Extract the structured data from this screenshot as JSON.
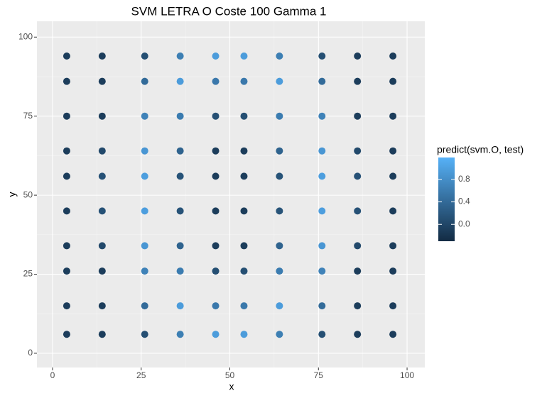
{
  "chart_data": {
    "type": "scatter",
    "title": "SVM LETRA O Coste 100 Gamma 1",
    "x_label": "x",
    "y_label": "y",
    "x": [
      4,
      4,
      4,
      4,
      4,
      4,
      4,
      4,
      4,
      4,
      14,
      14,
      14,
      14,
      14,
      14,
      14,
      14,
      14,
      14,
      26,
      26,
      26,
      26,
      26,
      26,
      26,
      26,
      26,
      26,
      36,
      36,
      36,
      36,
      36,
      36,
      36,
      36,
      36,
      36,
      46,
      46,
      46,
      46,
      46,
      46,
      46,
      46,
      46,
      46,
      54,
      54,
      54,
      54,
      54,
      54,
      54,
      54,
      54,
      54,
      64,
      64,
      64,
      64,
      64,
      64,
      64,
      64,
      64,
      64,
      76,
      76,
      76,
      76,
      76,
      76,
      76,
      76,
      76,
      76,
      86,
      86,
      86,
      86,
      86,
      86,
      86,
      86,
      86,
      86,
      96,
      96,
      96,
      96,
      96,
      96,
      96,
      96,
      96,
      96
    ],
    "values": [
      6,
      15,
      26,
      34,
      45,
      56,
      64,
      75,
      86,
      94,
      6,
      15,
      26,
      34,
      45,
      56,
      64,
      75,
      86,
      94,
      6,
      15,
      26,
      34,
      45,
      56,
      64,
      75,
      86,
      94,
      6,
      15,
      26,
      34,
      45,
      56,
      64,
      75,
      86,
      94,
      6,
      15,
      26,
      34,
      45,
      56,
      64,
      75,
      86,
      94,
      6,
      15,
      26,
      34,
      45,
      56,
      64,
      75,
      86,
      94,
      6,
      15,
      26,
      34,
      45,
      56,
      64,
      75,
      86,
      94,
      6,
      15,
      26,
      34,
      45,
      56,
      64,
      75,
      86,
      94,
      6,
      15,
      26,
      34,
      45,
      56,
      64,
      75,
      86,
      94,
      6,
      15,
      26,
      34,
      45,
      56,
      64,
      75,
      86,
      94
    ],
    "color_values": [
      -0.1,
      -0.1,
      -0.1,
      -0.1,
      -0.1,
      -0.1,
      -0.1,
      -0.1,
      -0.1,
      -0.1,
      -0.1,
      -0.1,
      -0.1,
      0.03,
      0.12,
      0.12,
      0.03,
      -0.1,
      -0.1,
      -0.1,
      0.1,
      0.41,
      0.67,
      0.89,
      0.98,
      0.98,
      0.89,
      0.67,
      0.41,
      0.1,
      0.63,
      0.96,
      0.6,
      0.32,
      0.14,
      0.14,
      0.32,
      0.6,
      0.96,
      0.63,
      0.96,
      0.56,
      0.1,
      -0.1,
      -0.1,
      -0.1,
      -0.1,
      0.1,
      0.56,
      0.96,
      0.96,
      0.56,
      0.1,
      -0.1,
      -0.1,
      -0.1,
      -0.1,
      0.1,
      0.56,
      0.96,
      0.63,
      0.96,
      0.6,
      0.32,
      0.14,
      0.14,
      0.32,
      0.6,
      0.96,
      0.63,
      0.1,
      0.41,
      0.67,
      0.89,
      0.98,
      0.98,
      0.89,
      0.67,
      0.41,
      0.1,
      -0.1,
      -0.1,
      -0.1,
      0.03,
      0.12,
      0.12,
      0.03,
      -0.1,
      -0.1,
      -0.1,
      -0.1,
      -0.1,
      -0.1,
      -0.1,
      -0.1,
      -0.1,
      -0.1,
      -0.1,
      -0.1,
      -0.1
    ],
    "xlim": [
      -4.4,
      105
    ],
    "ylim": [
      -4.5,
      105
    ],
    "xticks": [
      0,
      25,
      50,
      75,
      100
    ],
    "yticks": [
      0,
      25,
      50,
      75,
      100
    ],
    "grid": true,
    "colorbar": {
      "title": "predict(svm.O, test)",
      "lim": [
        -0.3,
        1.19
      ],
      "low": "#132B43",
      "high": "#56B1F7",
      "ticks": [
        {
          "value": 0,
          "label": "0.0"
        },
        0.4,
        0.8
      ]
    }
  }
}
